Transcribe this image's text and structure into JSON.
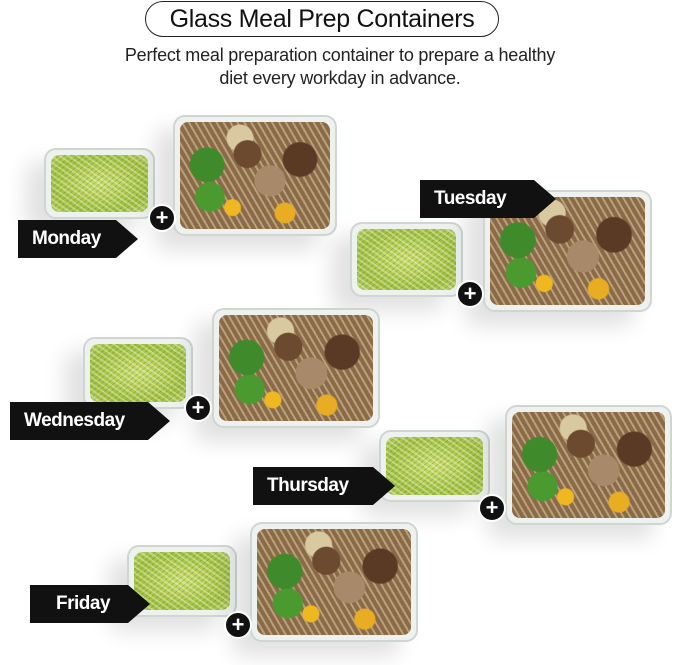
{
  "title": "Glass Meal Prep Containers",
  "subtitle": [
    "Perfect meal preparation container to prepare a healthy",
    "diet every workday in advance."
  ],
  "days": [
    "Monday",
    "Tuesday",
    "Wednesday",
    "Thursday",
    "Friday"
  ],
  "plus_icon": "plus-icon",
  "colors": {
    "tag": "#111111",
    "text": "#222222"
  }
}
